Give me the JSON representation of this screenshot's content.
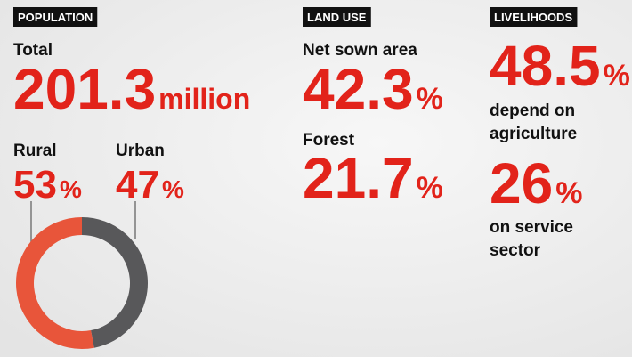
{
  "population": {
    "heading": "POPULATION",
    "total_label": "Total",
    "total_value": 201.3,
    "total_unit": "million",
    "rural": {
      "label": "Rural",
      "value": 53,
      "unit": "%",
      "color": "#e8553a"
    },
    "urban": {
      "label": "Urban",
      "value": 47,
      "unit": "%",
      "color": "#58585a"
    }
  },
  "land_use": {
    "heading": "LAND USE",
    "items": [
      {
        "label": "Net sown area",
        "value": 42.3,
        "unit": "%"
      },
      {
        "label": "Forest",
        "value": 21.7,
        "unit": "%"
      }
    ]
  },
  "livelihoods": {
    "heading": "LIVELIHOODS",
    "items": [
      {
        "value": 48.5,
        "unit": "%",
        "lines": [
          "depend on",
          "agriculture"
        ]
      },
      {
        "value": 26,
        "unit": "%",
        "lines": [
          "on service",
          "sector"
        ]
      }
    ]
  }
}
